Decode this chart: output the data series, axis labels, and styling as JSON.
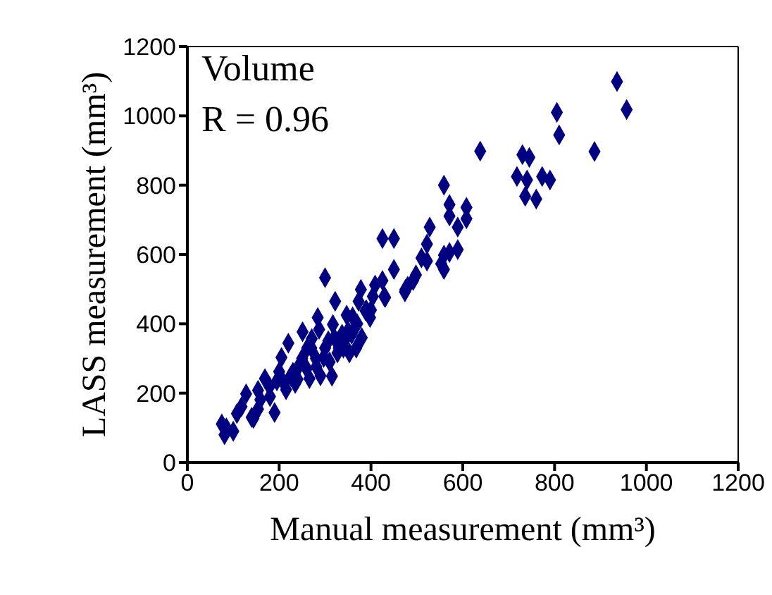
{
  "chart_data": {
    "type": "scatter",
    "xlabel": "Manual measurement (mm³)",
    "ylabel": "LASS measurement (mm³)",
    "annotations": [
      "Volume",
      "R = 0.96"
    ],
    "x": [
      81,
      85,
      75,
      108,
      118,
      128,
      144,
      154,
      159,
      154,
      169,
      190,
      179,
      195,
      200,
      205,
      220,
      225,
      235,
      245,
      251,
      261,
      266,
      271,
      281,
      287,
      284,
      297,
      307,
      315,
      317,
      322,
      327,
      337,
      347,
      358,
      368,
      373,
      378,
      388,
      398,
      404,
      409,
      429,
      475,
      342,
      353,
      300,
      210,
      230,
      250,
      270,
      290,
      310,
      330,
      350,
      370,
      390,
      215,
      240,
      260,
      280,
      300,
      320,
      340,
      360,
      380,
      400,
      431,
      474,
      480,
      492,
      425,
      498,
      559,
      450,
      553,
      522,
      510,
      559,
      571,
      589,
      450,
      425,
      522,
      528,
      608,
      589,
      571,
      608,
      571,
      559,
      638,
      718,
      730,
      773,
      736,
      805,
      810,
      740,
      745,
      760,
      790,
      936,
      957,
      887,
      100,
      140,
      180
    ],
    "values": [
      80,
      100,
      111,
      141,
      161,
      198,
      127,
      154,
      181,
      208,
      242,
      144,
      219,
      235,
      262,
      303,
      344,
      249,
      228,
      283,
      377,
      330,
      242,
      357,
      276,
      384,
      418,
      303,
      351,
      249,
      398,
      465,
      316,
      370,
      425,
      370,
      330,
      465,
      499,
      438,
      418,
      479,
      512,
      479,
      499,
      351,
      316,
      533,
      230,
      260,
      300,
      330,
      250,
      290,
      330,
      380,
      400,
      440,
      210,
      240,
      270,
      300,
      330,
      360,
      330,
      420,
      360,
      440,
      476,
      492,
      508,
      525,
      525,
      541,
      557,
      557,
      573,
      581,
      590,
      598,
      606,
      614,
      646,
      646,
      630,
      679,
      703,
      679,
      711,
      736,
      744,
      800,
      898,
      825,
      888,
      825,
      768,
      1010,
      945,
      815,
      880,
      760,
      815,
      1099,
      1018,
      897,
      90,
      130,
      190
    ],
    "color": "#000080",
    "marker": "diamond",
    "xlim": [
      0,
      1200
    ],
    "ylim": [
      0,
      1200
    ],
    "xticks": [
      0,
      200,
      400,
      600,
      800,
      1000,
      1200
    ],
    "yticks": [
      0,
      200,
      400,
      600,
      800,
      1000,
      1200
    ],
    "grid": false,
    "legend": false
  }
}
